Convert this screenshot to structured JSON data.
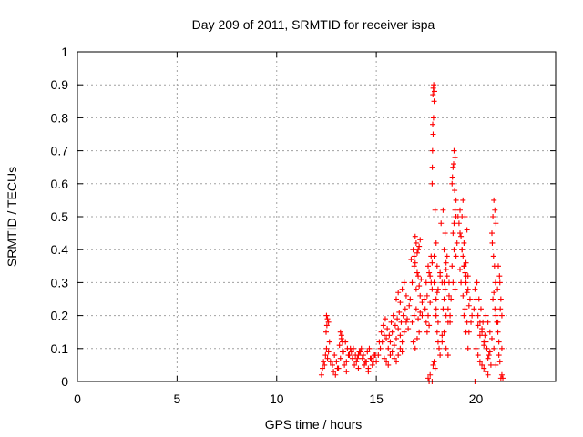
{
  "chart_data": {
    "type": "scatter",
    "title": "Day 209 of 2011, SRMTID for receiver ispa",
    "xlabel": "GPS time / hours",
    "ylabel": "SRMTID / TECUs",
    "xlim": [
      0,
      24
    ],
    "ylim": [
      0,
      1
    ],
    "xticks": [
      0,
      5,
      10,
      15,
      20
    ],
    "xtick_labels": [
      "0",
      "5",
      "10",
      "15",
      "20"
    ],
    "yticks": [
      0,
      0.1,
      0.2,
      0.3,
      0.4,
      0.5,
      0.6,
      0.7,
      0.8,
      0.9,
      1
    ],
    "ytick_labels": [
      "0",
      "0.1",
      "0.2",
      "0.3",
      "0.4",
      "0.5",
      "0.6",
      "0.7",
      "0.8",
      "0.9",
      "1"
    ],
    "grid": true,
    "marker": "+",
    "color": "#ff0000",
    "series": [
      {
        "name": "SRMTID",
        "x": [
          12.25,
          12.3,
          12.35,
          12.4,
          12.45,
          12.5,
          12.55,
          12.6,
          12.65,
          12.7,
          12.5,
          12.55,
          12.6,
          12.48,
          12.52,
          12.8,
          12.9,
          13.0,
          13.1,
          13.2,
          13.3,
          13.4,
          13.5,
          13.6,
          13.7,
          13.8,
          13.9,
          14.0,
          14.1,
          14.2,
          14.3,
          14.4,
          14.5,
          14.6,
          14.7,
          14.8,
          14.9,
          15.0,
          13.15,
          13.25,
          13.35,
          13.45,
          13.55,
          13.65,
          13.75,
          13.85,
          13.95,
          14.05,
          14.15,
          14.25,
          14.35,
          14.45,
          14.55,
          14.65,
          14.75,
          14.85,
          14.95,
          13.2,
          13.25,
          13.3,
          12.85,
          12.95,
          13.05,
          13.5,
          14.1,
          14.6,
          15.1,
          15.2,
          15.3,
          15.4,
          15.5,
          15.6,
          15.7,
          15.8,
          15.9,
          16.0,
          16.1,
          16.2,
          16.3,
          16.4,
          16.5,
          16.6,
          15.15,
          15.25,
          15.35,
          15.45,
          15.55,
          15.65,
          15.75,
          15.85,
          15.95,
          16.05,
          16.15,
          16.25,
          16.35,
          16.45,
          16.55,
          16.65,
          15.4,
          15.5,
          15.6,
          15.7,
          15.8,
          15.9,
          16.0,
          16.1,
          16.2,
          16.3,
          16.0,
          16.1,
          16.2,
          16.3,
          16.4,
          16.5,
          16.7,
          16.8,
          16.9,
          17.0,
          17.1,
          17.2,
          17.3,
          16.75,
          16.85,
          16.95,
          17.05,
          17.15,
          17.25,
          16.8,
          16.9,
          17.0,
          17.1,
          17.2,
          16.85,
          16.95,
          17.05,
          17.15,
          17.3,
          16.9,
          17.0,
          17.1,
          17.2,
          16.95,
          17.05,
          17.15,
          17.4,
          17.5,
          17.6,
          17.7,
          17.8,
          17.45,
          17.55,
          17.65,
          17.75,
          17.5,
          17.6,
          17.7,
          17.8,
          17.55,
          17.65,
          17.75,
          17.6,
          17.7,
          17.65,
          17.8,
          17.8,
          17.82,
          17.85,
          17.87,
          17.9,
          17.92,
          17.88,
          17.86,
          17.84,
          17.83,
          17.81,
          17.95,
          18.0,
          18.05,
          17.9,
          17.95,
          18.0,
          18.05,
          18.1,
          18.15,
          18.2,
          17.85,
          17.9,
          17.95,
          18.0,
          18.1,
          18.2,
          17.9,
          18.0,
          18.1,
          17.95,
          18.05,
          18.2,
          18.3,
          18.4,
          18.5,
          18.6,
          18.7,
          18.8,
          18.25,
          18.35,
          18.45,
          18.55,
          18.65,
          18.75,
          18.3,
          18.4,
          18.5,
          18.6,
          18.7,
          18.35,
          18.45,
          18.55,
          18.65,
          18.4,
          18.5,
          18.6,
          18.3,
          18.4,
          18.5,
          18.8,
          18.85,
          18.9,
          18.95,
          19.0,
          18.82,
          18.88,
          18.93,
          18.98,
          18.85,
          18.9,
          18.95,
          19.0,
          19.05,
          18.9,
          19.0,
          18.85,
          18.95,
          19.1,
          19.2,
          19.3,
          19.4,
          19.5,
          19.6,
          19.7,
          19.8,
          19.15,
          19.25,
          19.35,
          19.45,
          19.55,
          19.65,
          19.75,
          19.2,
          19.3,
          19.4,
          19.5,
          19.6,
          19.25,
          19.35,
          19.45,
          19.55,
          19.65,
          19.3,
          19.4,
          19.5,
          19.35,
          19.45,
          19.55,
          19.4,
          19.5,
          19.2,
          19.6,
          19.9,
          20.0,
          20.1,
          20.2,
          20.3,
          20.4,
          20.5,
          20.6,
          20.7,
          20.8,
          19.95,
          20.05,
          20.15,
          20.25,
          20.35,
          20.45,
          20.55,
          20.65,
          20.75,
          20.0,
          20.1,
          20.2,
          20.3,
          20.4,
          20.5,
          20.6,
          20.1,
          20.3,
          20.5,
          20.7,
          20.2,
          20.4,
          20.6,
          19.95,
          20.8,
          20.85,
          20.9,
          20.95,
          21.0,
          20.82,
          20.88,
          20.93,
          20.98,
          20.85,
          20.9,
          20.95,
          21.0,
          20.9,
          21.0,
          21.05,
          21.1,
          21.15,
          21.2,
          21.25,
          21.3,
          21.08,
          21.12,
          21.18,
          21.22,
          21.1,
          21.2,
          21.15,
          21.3,
          21.25,
          21.3,
          21.35
        ],
        "y": [
          0.02,
          0.04,
          0.06,
          0.05,
          0.08,
          0.1,
          0.07,
          0.09,
          0.12,
          0.06,
          0.2,
          0.19,
          0.18,
          0.15,
          0.17,
          0.05,
          0.08,
          0.06,
          0.04,
          0.07,
          0.09,
          0.05,
          0.06,
          0.08,
          0.1,
          0.07,
          0.05,
          0.06,
          0.08,
          0.09,
          0.07,
          0.05,
          0.06,
          0.04,
          0.07,
          0.05,
          0.08,
          0.06,
          0.11,
          0.13,
          0.09,
          0.12,
          0.1,
          0.08,
          0.09,
          0.1,
          0.08,
          0.07,
          0.09,
          0.1,
          0.08,
          0.06,
          0.09,
          0.1,
          0.07,
          0.06,
          0.08,
          0.15,
          0.14,
          0.12,
          0.03,
          0.02,
          0.04,
          0.03,
          0.04,
          0.03,
          0.08,
          0.1,
          0.12,
          0.14,
          0.13,
          0.1,
          0.12,
          0.15,
          0.11,
          0.13,
          0.16,
          0.14,
          0.12,
          0.15,
          0.18,
          0.16,
          0.12,
          0.15,
          0.17,
          0.19,
          0.16,
          0.14,
          0.18,
          0.2,
          0.17,
          0.19,
          0.21,
          0.18,
          0.2,
          0.22,
          0.19,
          0.23,
          0.07,
          0.06,
          0.05,
          0.08,
          0.09,
          0.07,
          0.06,
          0.08,
          0.1,
          0.09,
          0.25,
          0.27,
          0.24,
          0.28,
          0.3,
          0.26,
          0.25,
          0.3,
          0.35,
          0.28,
          0.32,
          0.26,
          0.24,
          0.37,
          0.4,
          0.36,
          0.33,
          0.29,
          0.31,
          0.18,
          0.2,
          0.22,
          0.19,
          0.21,
          0.12,
          0.1,
          0.13,
          0.15,
          0.2,
          0.38,
          0.42,
          0.4,
          0.43,
          0.44,
          0.39,
          0.41,
          0.25,
          0.3,
          0.35,
          0.32,
          0.28,
          0.22,
          0.26,
          0.33,
          0.38,
          0.18,
          0.2,
          0.24,
          0.36,
          0.15,
          0.17,
          0.3,
          0.01,
          0.02,
          0.0,
          0.0,
          0.6,
          0.7,
          0.75,
          0.8,
          0.85,
          0.88,
          0.9,
          0.89,
          0.87,
          0.78,
          0.65,
          0.52,
          0.42,
          0.35,
          0.3,
          0.25,
          0.2,
          0.15,
          0.12,
          0.1,
          0.08,
          0.05,
          0.06,
          0.04,
          0.22,
          0.28,
          0.32,
          0.38,
          0.25,
          0.18,
          0.2,
          0.27,
          0.33,
          0.3,
          0.25,
          0.2,
          0.22,
          0.18,
          0.35,
          0.48,
          0.52,
          0.45,
          0.38,
          0.3,
          0.25,
          0.12,
          0.15,
          0.1,
          0.08,
          0.2,
          0.22,
          0.28,
          0.32,
          0.26,
          0.3,
          0.34,
          0.18,
          0.14,
          0.4,
          0.36,
          0.6,
          0.65,
          0.7,
          0.68,
          0.55,
          0.62,
          0.66,
          0.58,
          0.5,
          0.45,
          0.48,
          0.52,
          0.5,
          0.42,
          0.4,
          0.38,
          0.3,
          0.28,
          0.5,
          0.45,
          0.4,
          0.35,
          0.3,
          0.28,
          0.25,
          0.2,
          0.48,
          0.44,
          0.38,
          0.33,
          0.27,
          0.23,
          0.18,
          0.52,
          0.5,
          0.42,
          0.36,
          0.32,
          0.3,
          0.26,
          0.22,
          0.18,
          0.15,
          0.4,
          0.35,
          0.32,
          0.55,
          0.5,
          0.46,
          0.2,
          0.15,
          0.34,
          0.1,
          0.22,
          0.25,
          0.2,
          0.18,
          0.15,
          0.12,
          0.2,
          0.18,
          0.15,
          0.13,
          0.28,
          0.3,
          0.25,
          0.22,
          0.18,
          0.14,
          0.1,
          0.08,
          0.05,
          0.1,
          0.08,
          0.06,
          0.05,
          0.04,
          0.03,
          0.02,
          0.17,
          0.16,
          0.12,
          0.09,
          0.14,
          0.11,
          0.07,
          0.0,
          0.45,
          0.5,
          0.55,
          0.52,
          0.48,
          0.42,
          0.38,
          0.35,
          0.3,
          0.25,
          0.27,
          0.22,
          0.2,
          0.1,
          0.05,
          0.18,
          0.15,
          0.12,
          0.3,
          0.25,
          0.2,
          0.28,
          0.35,
          0.32,
          0.22,
          0.18,
          0.06,
          0.08,
          0.1,
          0.01,
          0.02,
          0.01
        ]
      }
    ]
  }
}
